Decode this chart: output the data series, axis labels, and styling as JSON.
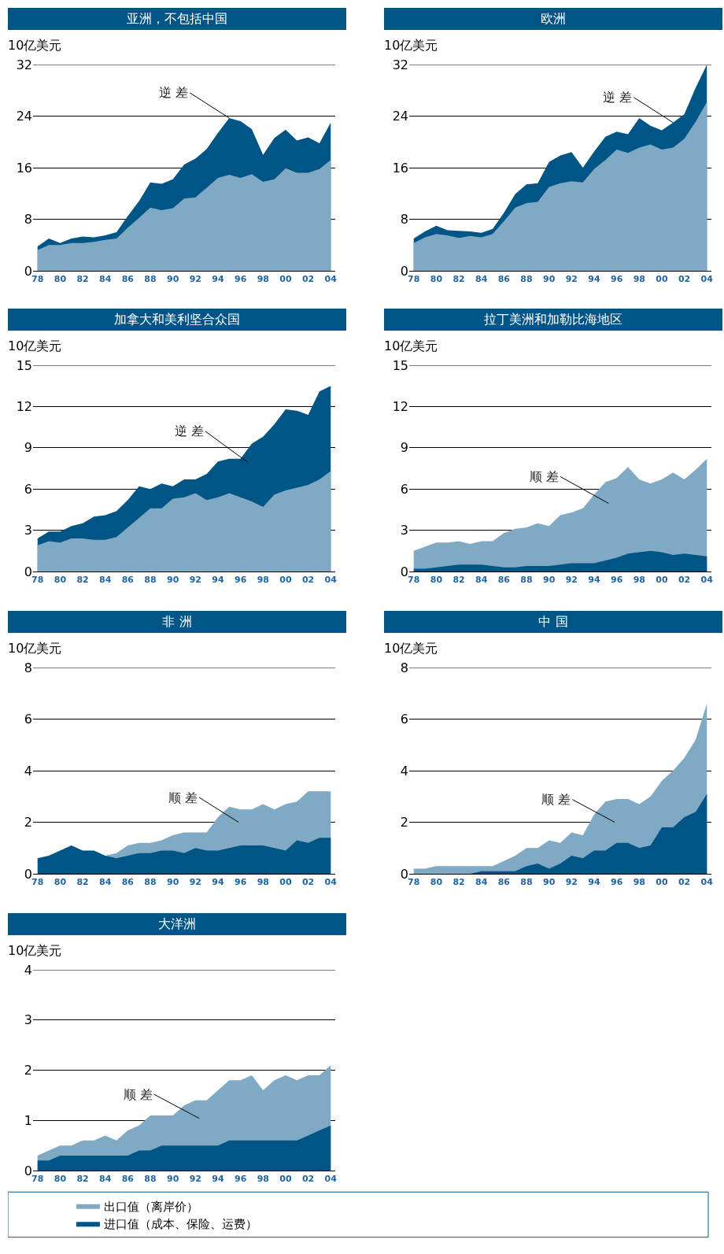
{
  "chart_data": [
    {
      "type": "area",
      "title": "亚洲，不包括中国",
      "ylabel": "10亿美元",
      "x": [
        1978,
        1979,
        1980,
        1981,
        1982,
        1983,
        1984,
        1985,
        1986,
        1987,
        1988,
        1989,
        1990,
        1991,
        1992,
        1993,
        1994,
        1995,
        1996,
        1997,
        1998,
        1999,
        2000,
        2001,
        2002,
        2003,
        2004
      ],
      "xlim": [
        1977.6,
        2004.4
      ],
      "xticks": [
        {
          "value": 1978,
          "label": "78"
        },
        {
          "value": 1980,
          "label": "80"
        },
        {
          "value": 1982,
          "label": "82"
        },
        {
          "value": 1984,
          "label": "84"
        },
        {
          "value": 1986,
          "label": "86"
        },
        {
          "value": 1988,
          "label": "88"
        },
        {
          "value": 1990,
          "label": "90"
        },
        {
          "value": 1992,
          "label": "92"
        },
        {
          "value": 1994,
          "label": "94"
        },
        {
          "value": 1996,
          "label": "96"
        },
        {
          "value": 1998,
          "label": "98"
        },
        {
          "value": 2000,
          "label": "00"
        },
        {
          "value": 2002,
          "label": "02"
        },
        {
          "value": 2004,
          "label": "04"
        }
      ],
      "ylim": [
        0,
        32
      ],
      "yticks": [
        0,
        8,
        16,
        24,
        32
      ],
      "grid": "y",
      "legend": false,
      "annotations": [
        {
          "text": "逆 差",
          "x": 1995,
          "y": 23.7
        }
      ],
      "series": [
        {
          "color": "#005587",
          "values": [
            3.8,
            5.0,
            4.3,
            5.0,
            5.3,
            5.2,
            5.5,
            6.0,
            8.5,
            10.8,
            13.7,
            13.5,
            14.2,
            16.5,
            17.4,
            18.9,
            21.4,
            23.7,
            23.2,
            22.0,
            18.0,
            20.6,
            21.9,
            20.2,
            20.7,
            19.8,
            23.0
          ]
        },
        {
          "color": "#80a9c3",
          "values": [
            3.2,
            4.0,
            4.0,
            4.3,
            4.3,
            4.5,
            4.8,
            5.0,
            6.7,
            8.2,
            9.8,
            9.4,
            9.7,
            11.2,
            11.4,
            12.9,
            14.4,
            14.9,
            14.4,
            15.0,
            13.8,
            14.2,
            15.9,
            15.2,
            15.2,
            15.8,
            17.2
          ]
        }
      ]
    },
    {
      "type": "area",
      "title": "欧洲",
      "ylabel": "10亿美元",
      "x": [
        1978,
        1979,
        1980,
        1981,
        1982,
        1983,
        1984,
        1985,
        1986,
        1987,
        1988,
        1989,
        1990,
        1991,
        1992,
        1993,
        1994,
        1995,
        1996,
        1997,
        1998,
        1999,
        2000,
        2001,
        2002,
        2003,
        2004
      ],
      "xlim": [
        1977.6,
        2004.4
      ],
      "xticks": [
        {
          "value": 1978,
          "label": "78"
        },
        {
          "value": 1980,
          "label": "80"
        },
        {
          "value": 1982,
          "label": "82"
        },
        {
          "value": 1984,
          "label": "84"
        },
        {
          "value": 1986,
          "label": "86"
        },
        {
          "value": 1988,
          "label": "88"
        },
        {
          "value": 1990,
          "label": "90"
        },
        {
          "value": 1992,
          "label": "92"
        },
        {
          "value": 1994,
          "label": "94"
        },
        {
          "value": 1996,
          "label": "96"
        },
        {
          "value": 1998,
          "label": "98"
        },
        {
          "value": 2000,
          "label": "00"
        },
        {
          "value": 2002,
          "label": "02"
        },
        {
          "value": 2004,
          "label": "04"
        }
      ],
      "ylim": [
        0,
        32
      ],
      "yticks": [
        0,
        8,
        16,
        24,
        32
      ],
      "grid": "y",
      "legend": false,
      "annotations": [
        {
          "text": "逆 差",
          "x": 2001,
          "y": 23
        }
      ],
      "series": [
        {
          "color": "#005587",
          "values": [
            5.0,
            6.1,
            7.0,
            6.3,
            6.2,
            6.1,
            5.9,
            6.5,
            9.0,
            11.9,
            13.4,
            13.6,
            16.9,
            17.9,
            18.4,
            16.0,
            18.5,
            20.8,
            21.6,
            21.2,
            23.7,
            22.5,
            21.8,
            23.0,
            24.3,
            28.4,
            32.0
          ]
        },
        {
          "color": "#80a9c3",
          "values": [
            4.3,
            5.2,
            5.7,
            5.5,
            5.1,
            5.4,
            5.2,
            5.7,
            7.7,
            9.8,
            10.5,
            10.7,
            13.0,
            13.6,
            13.9,
            13.7,
            15.8,
            17.2,
            18.8,
            18.3,
            19.1,
            19.6,
            18.8,
            19.1,
            20.5,
            23.1,
            26.2
          ]
        }
      ]
    },
    {
      "type": "area",
      "title": "加拿大和美利坚合众国",
      "ylabel": "10亿美元",
      "x": [
        1978,
        1979,
        1980,
        1981,
        1982,
        1983,
        1984,
        1985,
        1986,
        1987,
        1988,
        1989,
        1990,
        1991,
        1992,
        1993,
        1994,
        1995,
        1996,
        1997,
        1998,
        1999,
        2000,
        2001,
        2002,
        2003,
        2004
      ],
      "xlim": [
        1977.6,
        2004.4
      ],
      "xticks": [
        {
          "value": 1978,
          "label": "78"
        },
        {
          "value": 1980,
          "label": "80"
        },
        {
          "value": 1982,
          "label": "82"
        },
        {
          "value": 1984,
          "label": "84"
        },
        {
          "value": 1986,
          "label": "86"
        },
        {
          "value": 1988,
          "label": "88"
        },
        {
          "value": 1990,
          "label": "90"
        },
        {
          "value": 1992,
          "label": "92"
        },
        {
          "value": 1994,
          "label": "94"
        },
        {
          "value": 1996,
          "label": "96"
        },
        {
          "value": 1998,
          "label": "98"
        },
        {
          "value": 2000,
          "label": "00"
        },
        {
          "value": 2002,
          "label": "02"
        },
        {
          "value": 2004,
          "label": "04"
        }
      ],
      "ylim": [
        0,
        15
      ],
      "yticks": [
        0,
        3,
        6,
        9,
        12,
        15
      ],
      "grid": "y",
      "legend": false,
      "annotations": [
        "逆 差"
      ],
      "series": [
        {
          "color": "#005587",
          "values": [
            2.4,
            2.9,
            2.9,
            3.3,
            3.5,
            4.0,
            4.1,
            4.4,
            5.2,
            6.2,
            6.0,
            6.4,
            6.2,
            6.7,
            6.7,
            7.1,
            8.0,
            8.2,
            8.2,
            9.3,
            9.8,
            10.7,
            11.8,
            11.7,
            11.4,
            13.1,
            13.5
          ]
        },
        {
          "color": "#80a9c3",
          "values": [
            1.9,
            2.2,
            2.1,
            2.4,
            2.4,
            2.3,
            2.3,
            2.5,
            3.2,
            3.9,
            4.6,
            4.6,
            5.3,
            5.4,
            5.7,
            5.2,
            5.4,
            5.7,
            5.4,
            5.1,
            4.7,
            5.6,
            5.9,
            6.1,
            6.3,
            6.7,
            7.3
          ]
        }
      ]
    },
    {
      "type": "area",
      "title": "拉丁美洲和加勒比海地区",
      "ylabel": "10亿美元",
      "x": [
        1978,
        1979,
        1980,
        1981,
        1982,
        1983,
        1984,
        1985,
        1986,
        1987,
        1988,
        1989,
        1990,
        1991,
        1992,
        1993,
        1994,
        1995,
        1996,
        1997,
        1998,
        1999,
        2000,
        2001,
        2002,
        2003,
        2004
      ],
      "xlim": [
        1977.6,
        2004.4
      ],
      "xticks": [
        {
          "value": 1978,
          "label": "78"
        },
        {
          "value": 1980,
          "label": "80"
        },
        {
          "value": 1982,
          "label": "82"
        },
        {
          "value": 1984,
          "label": "84"
        },
        {
          "value": 1986,
          "label": "86"
        },
        {
          "value": 1988,
          "label": "88"
        },
        {
          "value": 1990,
          "label": "90"
        },
        {
          "value": 1992,
          "label": "92"
        },
        {
          "value": 1994,
          "label": "94"
        },
        {
          "value": 1996,
          "label": "96"
        },
        {
          "value": 1998,
          "label": "98"
        },
        {
          "value": 2000,
          "label": "00"
        },
        {
          "value": 2002,
          "label": "02"
        },
        {
          "value": 2004,
          "label": "04"
        }
      ],
      "ylim": [
        0,
        15
      ],
      "yticks": [
        0,
        3,
        6,
        9,
        12,
        15
      ],
      "grid": "y",
      "legend": false,
      "annotations": [
        "顺 差"
      ],
      "series": [
        {
          "color": "#80a9c3",
          "values": [
            1.5,
            1.8,
            2.1,
            2.1,
            2.2,
            2.0,
            2.2,
            2.2,
            2.8,
            3.1,
            3.2,
            3.5,
            3.3,
            4.1,
            4.3,
            4.6,
            5.6,
            6.5,
            6.8,
            7.6,
            6.7,
            6.4,
            6.7,
            7.2,
            6.7,
            7.4,
            8.2
          ]
        },
        {
          "color": "#005587",
          "values": [
            0.2,
            0.2,
            0.3,
            0.4,
            0.5,
            0.5,
            0.5,
            0.4,
            0.3,
            0.3,
            0.4,
            0.4,
            0.4,
            0.5,
            0.6,
            0.6,
            0.6,
            0.8,
            1.0,
            1.3,
            1.4,
            1.5,
            1.4,
            1.2,
            1.3,
            1.2,
            1.1
          ]
        }
      ]
    },
    {
      "type": "area",
      "title": "非 洲",
      "ylabel": "10亿美元",
      "x": [
        1978,
        1979,
        1980,
        1981,
        1982,
        1983,
        1984,
        1985,
        1986,
        1987,
        1988,
        1989,
        1990,
        1991,
        1992,
        1993,
        1994,
        1995,
        1996,
        1997,
        1998,
        1999,
        2000,
        2001,
        2002,
        2003,
        2004
      ],
      "xlim": [
        1977.6,
        2004.4
      ],
      "xticks": [
        {
          "value": 1978,
          "label": "78"
        },
        {
          "value": 1980,
          "label": "80"
        },
        {
          "value": 1982,
          "label": "82"
        },
        {
          "value": 1984,
          "label": "84"
        },
        {
          "value": 1986,
          "label": "86"
        },
        {
          "value": 1988,
          "label": "88"
        },
        {
          "value": 1990,
          "label": "90"
        },
        {
          "value": 1992,
          "label": "92"
        },
        {
          "value": 1994,
          "label": "94"
        },
        {
          "value": 1996,
          "label": "96"
        },
        {
          "value": 1998,
          "label": "98"
        },
        {
          "value": 2000,
          "label": "00"
        },
        {
          "value": 2002,
          "label": "02"
        },
        {
          "value": 2004,
          "label": "04"
        }
      ],
      "ylim": [
        0,
        8
      ],
      "yticks": [
        0,
        2,
        4,
        6,
        8
      ],
      "grid": "y",
      "legend": false,
      "annotations": [
        "顺 差"
      ],
      "series": [
        {
          "color": "#80a9c3",
          "values": [
            null,
            null,
            null,
            null,
            null,
            null,
            0.7,
            0.8,
            1.1,
            1.2,
            1.2,
            1.3,
            1.5,
            1.6,
            1.6,
            1.6,
            2.2,
            2.6,
            2.5,
            2.5,
            2.7,
            2.5,
            2.7,
            2.8,
            3.2,
            3.2,
            3.2
          ]
        },
        {
          "color": "#005587",
          "values": [
            0.6,
            0.7,
            0.9,
            1.1,
            0.9,
            0.9,
            0.7,
            0.6,
            0.7,
            0.8,
            0.8,
            0.9,
            0.9,
            0.8,
            1.0,
            0.9,
            0.9,
            1.0,
            1.1,
            1.1,
            1.1,
            1.0,
            0.9,
            1.3,
            1.2,
            1.4,
            1.4
          ]
        }
      ]
    },
    {
      "type": "area",
      "title": "中 国",
      "ylabel": "10亿美元",
      "x": [
        1978,
        1979,
        1980,
        1981,
        1982,
        1983,
        1984,
        1985,
        1986,
        1987,
        1988,
        1989,
        1990,
        1991,
        1992,
        1993,
        1994,
        1995,
        1996,
        1997,
        1998,
        1999,
        2000,
        2001,
        2002,
        2003,
        2004
      ],
      "xlim": [
        1977.6,
        2004.4
      ],
      "xticks": [
        {
          "value": 1978,
          "label": "78"
        },
        {
          "value": 1980,
          "label": "80"
        },
        {
          "value": 1982,
          "label": "82"
        },
        {
          "value": 1984,
          "label": "84"
        },
        {
          "value": 1986,
          "label": "86"
        },
        {
          "value": 1988,
          "label": "88"
        },
        {
          "value": 1990,
          "label": "90"
        },
        {
          "value": 1992,
          "label": "92"
        },
        {
          "value": 1994,
          "label": "94"
        },
        {
          "value": 1996,
          "label": "96"
        },
        {
          "value": 1998,
          "label": "98"
        },
        {
          "value": 2000,
          "label": "00"
        },
        {
          "value": 2002,
          "label": "02"
        },
        {
          "value": 2004,
          "label": "04"
        }
      ],
      "ylim": [
        0,
        8
      ],
      "yticks": [
        0,
        2,
        4,
        6,
        8
      ],
      "grid": "y",
      "legend": false,
      "annotations": [
        "顺 差"
      ],
      "series": [
        {
          "color": "#80a9c3",
          "values": [
            0.2,
            0.2,
            0.3,
            0.3,
            0.3,
            0.3,
            0.3,
            0.3,
            0.5,
            0.7,
            1.0,
            1.0,
            1.3,
            1.2,
            1.6,
            1.5,
            2.3,
            2.8,
            2.9,
            2.9,
            2.7,
            3.0,
            3.6,
            4.0,
            4.5,
            5.2,
            6.6
          ]
        },
        {
          "color": "#005587",
          "values": [
            0,
            0,
            0,
            0,
            0,
            0,
            0.1,
            0.1,
            0.1,
            0.1,
            0.3,
            0.4,
            0.2,
            0.4,
            0.7,
            0.6,
            0.9,
            0.9,
            1.2,
            1.2,
            1.0,
            1.1,
            1.8,
            1.8,
            2.2,
            2.4,
            3.1
          ]
        }
      ]
    },
    {
      "type": "area",
      "title": "大洋洲",
      "ylabel": "10亿美元",
      "x": [
        1978,
        1979,
        1980,
        1981,
        1982,
        1983,
        1984,
        1985,
        1986,
        1987,
        1988,
        1989,
        1990,
        1991,
        1992,
        1993,
        1994,
        1995,
        1996,
        1997,
        1998,
        1999,
        2000,
        2001,
        2002,
        2003,
        2004
      ],
      "xlim": [
        1977.6,
        2004.4
      ],
      "xticks": [
        {
          "value": 1978,
          "label": "78"
        },
        {
          "value": 1980,
          "label": "80"
        },
        {
          "value": 1982,
          "label": "82"
        },
        {
          "value": 1984,
          "label": "84"
        },
        {
          "value": 1986,
          "label": "86"
        },
        {
          "value": 1988,
          "label": "88"
        },
        {
          "value": 1990,
          "label": "90"
        },
        {
          "value": 1992,
          "label": "92"
        },
        {
          "value": 1994,
          "label": "94"
        },
        {
          "value": 1996,
          "label": "96"
        },
        {
          "value": 1998,
          "label": "98"
        },
        {
          "value": 2000,
          "label": "00"
        },
        {
          "value": 2002,
          "label": "02"
        },
        {
          "value": 2004,
          "label": "04"
        }
      ],
      "ylim": [
        0,
        4
      ],
      "yticks": [
        0,
        1,
        2,
        3,
        4
      ],
      "grid": "y",
      "legend": "bottom",
      "annotations": [
        "顺 差"
      ],
      "series": [
        {
          "name": "出口值（离岸价）",
          "color": "#80a9c3",
          "values": [
            0.3,
            0.4,
            0.5,
            0.5,
            0.6,
            0.6,
            0.7,
            0.6,
            0.8,
            0.9,
            1.1,
            1.1,
            1.1,
            1.3,
            1.4,
            1.4,
            1.6,
            1.8,
            1.8,
            1.9,
            1.6,
            1.8,
            1.9,
            1.8,
            1.9,
            1.9,
            2.1
          ]
        },
        {
          "name": "进口值（成本、保险、运费）",
          "color": "#005587",
          "values": [
            0.2,
            0.2,
            0.3,
            0.3,
            0.3,
            0.3,
            0.3,
            0.3,
            0.3,
            0.4,
            0.4,
            0.5,
            0.5,
            0.5,
            0.5,
            0.5,
            0.5,
            0.6,
            0.6,
            0.6,
            0.6,
            0.6,
            0.6,
            0.6,
            0.7,
            0.8,
            0.9
          ]
        }
      ]
    }
  ]
}
